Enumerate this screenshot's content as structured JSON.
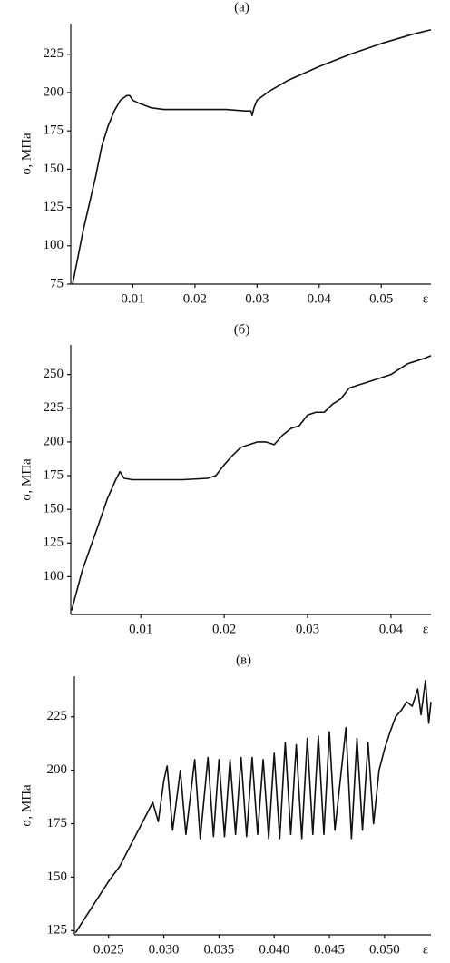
{
  "chart_data": [
    {
      "type": "line",
      "title": "(а)",
      "y_label": "σ, МПа",
      "x_label": "ε",
      "color": "#111111",
      "xlim": [
        0,
        0.058
      ],
      "ylim": [
        75,
        245
      ],
      "xticks": [
        0.01,
        0.02,
        0.03,
        0.04,
        0.05
      ],
      "yticks": [
        75,
        100,
        125,
        150,
        175,
        200,
        225
      ],
      "x": [
        0.0003,
        0.002,
        0.004,
        0.005,
        0.006,
        0.007,
        0.008,
        0.009,
        0.0095,
        0.01,
        0.011,
        0.013,
        0.015,
        0.02,
        0.025,
        0.028,
        0.029,
        0.0292,
        0.0295,
        0.03,
        0.032,
        0.035,
        0.04,
        0.045,
        0.05,
        0.055,
        0.058
      ],
      "values": [
        75,
        110,
        145,
        165,
        178,
        188,
        195,
        198,
        198,
        195,
        193,
        190,
        189,
        189,
        189,
        188,
        188,
        185,
        190,
        195,
        201,
        208,
        217,
        225,
        232,
        238,
        241
      ]
    },
    {
      "type": "line",
      "title": "(б)",
      "y_label": "σ, МПа",
      "x_label": "ε",
      "color": "#111111",
      "xlim": [
        0.0016,
        0.0448
      ],
      "ylim": [
        72,
        272
      ],
      "xticks": [
        0.01,
        0.02,
        0.03,
        0.04
      ],
      "yticks": [
        100,
        125,
        150,
        175,
        200,
        225,
        250
      ],
      "x": [
        0.0017,
        0.003,
        0.005,
        0.006,
        0.007,
        0.0075,
        0.008,
        0.009,
        0.012,
        0.015,
        0.018,
        0.019,
        0.02,
        0.021,
        0.022,
        0.024,
        0.025,
        0.026,
        0.027,
        0.028,
        0.029,
        0.03,
        0.031,
        0.032,
        0.033,
        0.034,
        0.035,
        0.036,
        0.037,
        0.038,
        0.039,
        0.04,
        0.041,
        0.042,
        0.043,
        0.044,
        0.0448
      ],
      "values": [
        75,
        105,
        140,
        158,
        172,
        178,
        173,
        172,
        172,
        172,
        173,
        175,
        183,
        190,
        196,
        200,
        200,
        198,
        205,
        210,
        212,
        220,
        222,
        222,
        228,
        232,
        240,
        242,
        244,
        246,
        248,
        250,
        254,
        258,
        260,
        262,
        264
      ]
    },
    {
      "type": "line",
      "title": "(в)",
      "y_label": "σ, МПа",
      "x_label": "ε",
      "color": "#111111",
      "xlim": [
        0.0219,
        0.0542
      ],
      "ylim": [
        123,
        244
      ],
      "xticks": [
        0.025,
        {
          "value": 0.03,
          "label": "0.030"
        },
        0.035,
        {
          "value": 0.04,
          "label": "0.040"
        },
        0.045,
        {
          "value": 0.05,
          "label": "0.050"
        }
      ],
      "yticks": [
        125,
        150,
        175,
        200,
        225
      ],
      "x": [
        0.022,
        0.023,
        0.024,
        0.025,
        0.026,
        0.027,
        0.028,
        0.0285,
        0.029,
        0.0295,
        0.03,
        0.0303,
        0.0308,
        0.0315,
        0.032,
        0.0328,
        0.0333,
        0.034,
        0.0345,
        0.035,
        0.0355,
        0.036,
        0.0365,
        0.037,
        0.0375,
        0.038,
        0.0385,
        0.039,
        0.0395,
        0.04,
        0.0405,
        0.041,
        0.0415,
        0.042,
        0.0425,
        0.043,
        0.0435,
        0.044,
        0.0445,
        0.045,
        0.0455,
        0.0465,
        0.047,
        0.0475,
        0.048,
        0.0485,
        0.049,
        0.0495,
        0.05,
        0.0505,
        0.051,
        0.0515,
        0.052,
        0.0525,
        0.053,
        0.0533,
        0.0537,
        0.054,
        0.0542
      ],
      "values": [
        124,
        132,
        140,
        148,
        155,
        165,
        175,
        180,
        185,
        176,
        195,
        202,
        172,
        200,
        170,
        205,
        168,
        206,
        169,
        205,
        169,
        205,
        170,
        206,
        169,
        206,
        170,
        205,
        168,
        208,
        168,
        213,
        170,
        212,
        168,
        215,
        170,
        216,
        170,
        218,
        172,
        220,
        168,
        215,
        172,
        213,
        175,
        200,
        210,
        218,
        225,
        228,
        232,
        230,
        238,
        226,
        242,
        222,
        232
      ]
    }
  ]
}
